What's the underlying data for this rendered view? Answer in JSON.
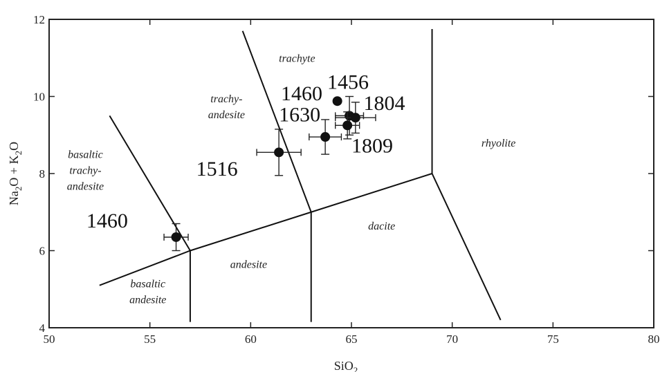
{
  "chart_data": {
    "type": "scatter",
    "title": "",
    "xlabel": "SiO2",
    "xlabel_base": "SiO",
    "xlabel_sub": "2",
    "ylabel": "Na2O + K2O",
    "ylabel_parts": [
      "Na",
      "2",
      "O + K",
      "2",
      "O"
    ],
    "xlim": [
      50,
      80
    ],
    "ylim": [
      4,
      12
    ],
    "xticks": [
      50,
      55,
      60,
      65,
      70,
      75,
      80
    ],
    "xtick_labels": [
      "50",
      "55",
      "60",
      "65",
      "70",
      "75",
      "80"
    ],
    "yticks": [
      4,
      6,
      8,
      10,
      12
    ],
    "ytick_labels": [
      "4",
      "6",
      "8",
      "10",
      "12"
    ],
    "grid": false,
    "boundary_lines": [
      [
        [
          52.5,
          5.1
        ],
        [
          57,
          6
        ],
        [
          63,
          7
        ],
        [
          69,
          8
        ]
      ],
      [
        [
          57,
          6
        ],
        [
          57,
          4.15
        ]
      ],
      [
        [
          63,
          7
        ],
        [
          63,
          4.15
        ]
      ],
      [
        [
          69,
          8
        ],
        [
          69,
          11.75
        ]
      ],
      [
        [
          69,
          8
        ],
        [
          72.4,
          4.2
        ]
      ],
      [
        [
          53,
          9.5
        ],
        [
          57,
          6
        ]
      ],
      [
        [
          59.6,
          11.7
        ],
        [
          63,
          7
        ]
      ]
    ],
    "field_labels": [
      {
        "lines": [
          "trachyte"
        ],
        "x": 62.3,
        "y": 10.9
      },
      {
        "lines": [
          "trachy-",
          "andesite"
        ],
        "x": 58.8,
        "y": 9.85
      },
      {
        "lines": [
          "basaltic",
          "trachy-",
          "andesite"
        ],
        "x": 51.8,
        "y": 8.4
      },
      {
        "lines": [
          "rhyolite"
        ],
        "x": 72.3,
        "y": 8.7
      },
      {
        "lines": [
          "dacite"
        ],
        "x": 66.5,
        "y": 6.55
      },
      {
        "lines": [
          "andesite"
        ],
        "x": 59.9,
        "y": 5.55
      },
      {
        "lines": [
          "basaltic",
          "andesite"
        ],
        "x": 54.9,
        "y": 5.05
      }
    ],
    "points": [
      {
        "label": "1460",
        "x": 56.3,
        "y": 6.35,
        "xerr": 0.6,
        "yerr": 0.35
      },
      {
        "label": "1516",
        "x": 61.4,
        "y": 8.55,
        "xerr": 1.1,
        "yerr": 0.6
      },
      {
        "label": "1630",
        "x": 63.7,
        "y": 8.95,
        "xerr": 0.8,
        "yerr": 0.45
      },
      {
        "label": "1460",
        "x": 64.3,
        "y": 9.88,
        "xerr": 0,
        "yerr": 0
      },
      {
        "label": "1456",
        "x": 64.9,
        "y": 9.5,
        "xerr": 0.7,
        "yerr": 0.5
      },
      {
        "label": "1804",
        "x": 65.2,
        "y": 9.45,
        "xerr": 1.0,
        "yerr": 0.4
      },
      {
        "label": "1809",
        "x": 64.8,
        "y": 9.25,
        "xerr": 0.6,
        "yerr": 0.35
      }
    ],
    "point_labels": [
      {
        "text": "1460",
        "x": 51.85,
        "y": 6.6
      },
      {
        "text": "1516",
        "x": 57.3,
        "y": 7.95
      },
      {
        "text": "1630",
        "x": 61.4,
        "y": 9.35
      },
      {
        "text": "1460",
        "x": 61.5,
        "y": 9.9
      },
      {
        "text": "1456",
        "x": 63.8,
        "y": 10.2
      },
      {
        "text": "1804",
        "x": 65.6,
        "y": 9.65
      },
      {
        "text": "1809",
        "x": 65.0,
        "y": 8.55
      }
    ]
  }
}
